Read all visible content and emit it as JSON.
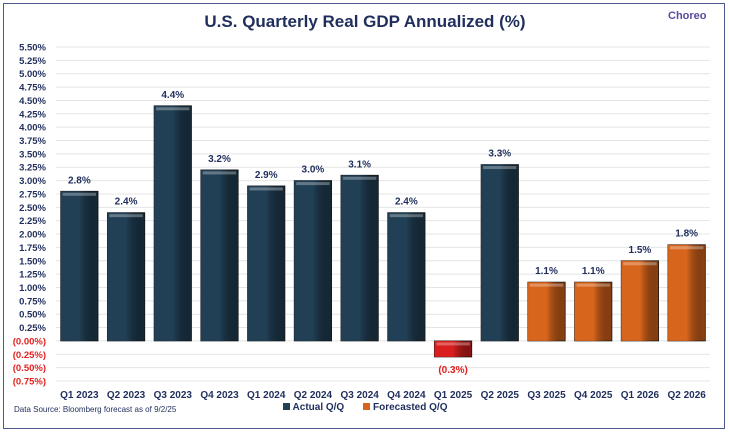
{
  "brand": "Choreo",
  "source_note": "Data Source: Bloomberg forecast as of 9/2/25",
  "colors": {
    "actual": "#213f55",
    "forecast": "#d8651c",
    "negative": "#d81e1e",
    "text": "#1f2e5c",
    "negative_text": "#e02020",
    "grid": "#e4e4e4"
  },
  "chart_data": {
    "type": "bar",
    "title": "U.S. Quarterly Real GDP Annualized (%)",
    "xlabel": "",
    "ylabel": "",
    "ylim": [
      -0.75,
      5.5
    ],
    "ytick_step": 0.25,
    "ytick_labels": [
      "5.50%",
      "5.25%",
      "5.00%",
      "4.75%",
      "4.50%",
      "4.25%",
      "4.00%",
      "3.75%",
      "3.50%",
      "3.25%",
      "3.00%",
      "2.75%",
      "2.50%",
      "2.25%",
      "2.00%",
      "1.75%",
      "1.50%",
      "1.25%",
      "1.00%",
      "0.75%",
      "0.50%",
      "0.25%",
      "(0.00%)",
      "(0.25%)",
      "(0.50%)",
      "(0.75%)"
    ],
    "grid": true,
    "legend_position": "bottom",
    "categories": [
      "Q1 2023",
      "Q2 2023",
      "Q3 2023",
      "Q4 2023",
      "Q1 2024",
      "Q2 2024",
      "Q3 2024",
      "Q4 2024",
      "Q1 2025",
      "Q2 2025",
      "Q3 2025",
      "Q4 2025",
      "Q1 2026",
      "Q2 2026"
    ],
    "series": [
      {
        "name": "Actual Q/Q",
        "values": [
          2.8,
          2.4,
          4.4,
          3.2,
          2.9,
          3.0,
          3.1,
          2.4,
          -0.3,
          3.3,
          null,
          null,
          null,
          null
        ]
      },
      {
        "name": "Forecasted Q/Q",
        "values": [
          null,
          null,
          null,
          null,
          null,
          null,
          null,
          null,
          null,
          null,
          1.1,
          1.1,
          1.5,
          1.8
        ]
      }
    ],
    "data_labels": [
      "2.8%",
      "2.4%",
      "4.4%",
      "3.2%",
      "2.9%",
      "3.0%",
      "3.1%",
      "2.4%",
      "(0.3%)",
      "3.3%",
      "1.1%",
      "1.1%",
      "1.5%",
      "1.8%"
    ]
  }
}
